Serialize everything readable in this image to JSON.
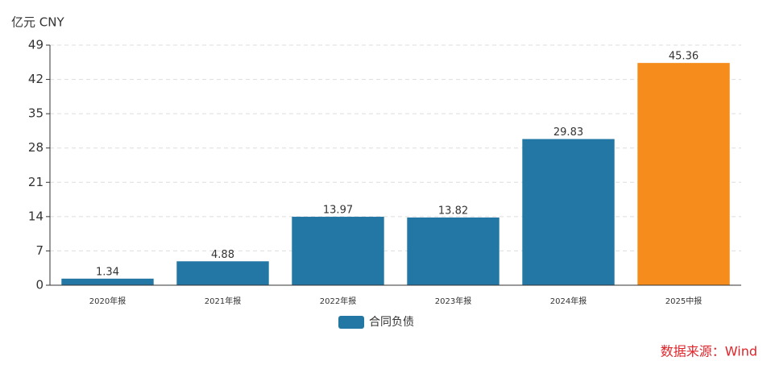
{
  "chart_data": {
    "type": "bar",
    "unit_label": "亿元  CNY",
    "categories": [
      "2020年报",
      "2021年报",
      "2022年报",
      "2023年报",
      "2024年报",
      "2025中报"
    ],
    "series": [
      {
        "name": "合同负债",
        "color": "#2277a4",
        "values": [
          1.34,
          4.88,
          13.97,
          13.82,
          29.83,
          45.36
        ],
        "colors": [
          "#2277a4",
          "#2277a4",
          "#2277a4",
          "#2277a4",
          "#2277a4",
          "#f68c1b"
        ]
      }
    ],
    "ylim": [
      0,
      49
    ],
    "yticks": [
      0,
      7,
      14,
      21,
      28,
      35,
      42,
      49
    ],
    "grid": true,
    "source": "数据来源：Wind"
  }
}
